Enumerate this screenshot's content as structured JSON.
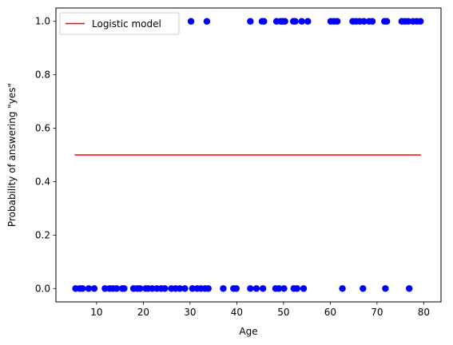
{
  "chart_data": {
    "type": "scatter",
    "xlabel": "Age",
    "ylabel": "Probability of answering \"yes\"",
    "xlim": [
      1.3,
      83.7
    ],
    "ylim": [
      -0.05,
      1.05
    ],
    "xticks": [
      10,
      20,
      30,
      40,
      50,
      60,
      70,
      80
    ],
    "yticks": [
      0.0,
      0.2,
      0.4,
      0.6,
      0.8,
      1.0
    ],
    "grid": false,
    "legend": {
      "placement": "top-left",
      "entries": [
        "Logistic model"
      ]
    },
    "series": [
      {
        "name": "",
        "kind": "scatter",
        "color": "#0000ff",
        "x": [
          5.5,
          6.4,
          7.0,
          8.3,
          9.5,
          11.8,
          12.8,
          13.5,
          14.3,
          15.5,
          15.9,
          17.9,
          18.7,
          19.3,
          20.5,
          21.0,
          21.9,
          22.9,
          23.8,
          24.6,
          26.0,
          26.9,
          27.8,
          28.9,
          30.5,
          31.5,
          32.3,
          33.2,
          33.9,
          37.1,
          39.3,
          39.9,
          42.9,
          44.2,
          45.6,
          48.3,
          49.0,
          50.1,
          52.2,
          52.9,
          54.3,
          62.6,
          67.0,
          71.8,
          76.9,
          30.2,
          33.6,
          42.9,
          45.4,
          45.8,
          48.5,
          49.4,
          49.8,
          50.3,
          52.1,
          52.5,
          53.9,
          55.2,
          60.1,
          60.8,
          61.5,
          64.8,
          65.5,
          66.3,
          67.2,
          68.3,
          69.0,
          71.6,
          72.1,
          75.3,
          76.0,
          76.7,
          77.7,
          78.5,
          79.3
        ],
        "y": [
          0,
          0,
          0,
          0,
          0,
          0,
          0,
          0,
          0,
          0,
          0,
          0,
          0,
          0,
          0,
          0,
          0,
          0,
          0,
          0,
          0,
          0,
          0,
          0,
          0,
          0,
          0,
          0,
          0,
          0,
          0,
          0,
          0,
          0,
          0,
          0,
          0,
          0,
          0,
          0,
          0,
          0,
          0,
          0,
          0,
          1,
          1,
          1,
          1,
          1,
          1,
          1,
          1,
          1,
          1,
          1,
          1,
          1,
          1,
          1,
          1,
          1,
          1,
          1,
          1,
          1,
          1,
          1,
          1,
          1,
          1,
          1,
          1,
          1,
          1
        ]
      },
      {
        "name": "Logistic model",
        "kind": "line",
        "color": "#ff0000",
        "x": [
          5.3,
          79.4
        ],
        "y": [
          0.5,
          0.5
        ]
      }
    ]
  }
}
